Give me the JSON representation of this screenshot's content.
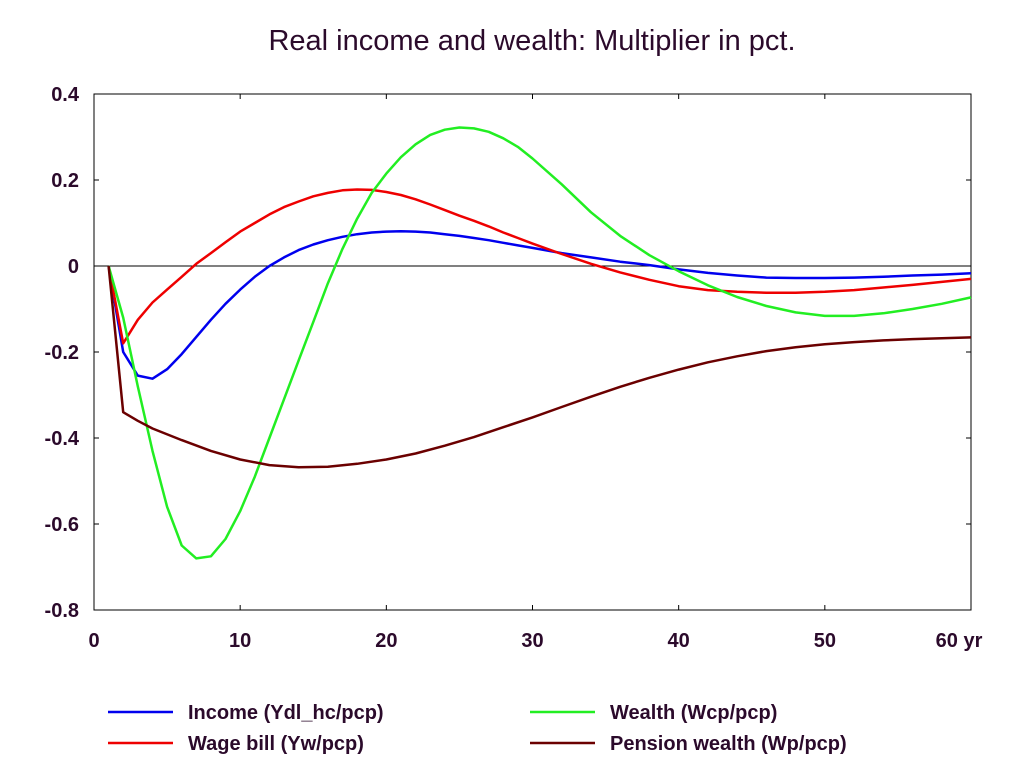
{
  "chart_data": {
    "type": "line",
    "title": "Real income and wealth: Multiplier in pct.",
    "xlabel": "",
    "ylabel": "",
    "x_unit_label": "yr",
    "xlim": [
      0,
      60
    ],
    "ylim": [
      -0.8,
      0.4
    ],
    "x_ticks": [
      0,
      10,
      20,
      30,
      40,
      50,
      60
    ],
    "x_tick_labels": [
      "0",
      "10",
      "20",
      "30",
      "40",
      "50",
      "60"
    ],
    "y_ticks": [
      0.4,
      0.2,
      0,
      -0.2,
      -0.4,
      -0.6,
      -0.8
    ],
    "y_tick_labels": [
      "0.4",
      "0.2",
      "0",
      "-0.2",
      "-0.4",
      "-0.6",
      "-0.8"
    ],
    "grid": false,
    "zero_line": true,
    "legend_position": "bottom",
    "series": [
      {
        "name": "Income (Ydl_hc/pcp)",
        "color": "#0000ee",
        "points": [
          [
            1,
            0
          ],
          [
            2,
            -0.2
          ],
          [
            3,
            -0.255
          ],
          [
            4,
            -0.262
          ],
          [
            5,
            -0.24
          ],
          [
            6,
            -0.205
          ],
          [
            7,
            -0.165
          ],
          [
            8,
            -0.125
          ],
          [
            9,
            -0.088
          ],
          [
            10,
            -0.055
          ],
          [
            11,
            -0.025
          ],
          [
            12,
            0.0
          ],
          [
            13,
            0.02
          ],
          [
            14,
            0.037
          ],
          [
            15,
            0.05
          ],
          [
            16,
            0.06
          ],
          [
            17,
            0.068
          ],
          [
            18,
            0.074
          ],
          [
            19,
            0.078
          ],
          [
            20,
            0.08
          ],
          [
            21,
            0.081
          ],
          [
            22,
            0.08
          ],
          [
            23,
            0.078
          ],
          [
            24,
            0.074
          ],
          [
            25,
            0.07
          ],
          [
            26,
            0.065
          ],
          [
            27,
            0.06
          ],
          [
            28,
            0.054
          ],
          [
            29,
            0.048
          ],
          [
            30,
            0.042
          ],
          [
            32,
            0.03
          ],
          [
            34,
            0.02
          ],
          [
            36,
            0.01
          ],
          [
            38,
            0.002
          ],
          [
            40,
            -0.008
          ],
          [
            42,
            -0.016
          ],
          [
            44,
            -0.022
          ],
          [
            46,
            -0.027
          ],
          [
            48,
            -0.028
          ],
          [
            50,
            -0.028
          ],
          [
            52,
            -0.027
          ],
          [
            54,
            -0.025
          ],
          [
            56,
            -0.022
          ],
          [
            58,
            -0.02
          ],
          [
            60,
            -0.017
          ]
        ]
      },
      {
        "name": "Wage bill (Yw/pcp)",
        "color": "#ee0000",
        "points": [
          [
            1,
            0
          ],
          [
            2,
            -0.18
          ],
          [
            3,
            -0.125
          ],
          [
            4,
            -0.085
          ],
          [
            5,
            -0.055
          ],
          [
            6,
            -0.025
          ],
          [
            7,
            0.005
          ],
          [
            8,
            0.03
          ],
          [
            9,
            0.055
          ],
          [
            10,
            0.08
          ],
          [
            11,
            0.1
          ],
          [
            12,
            0.12
          ],
          [
            13,
            0.137
          ],
          [
            14,
            0.15
          ],
          [
            15,
            0.162
          ],
          [
            16,
            0.17
          ],
          [
            17,
            0.176
          ],
          [
            18,
            0.178
          ],
          [
            19,
            0.177
          ],
          [
            20,
            0.172
          ],
          [
            21,
            0.165
          ],
          [
            22,
            0.155
          ],
          [
            23,
            0.143
          ],
          [
            24,
            0.13
          ],
          [
            25,
            0.117
          ],
          [
            26,
            0.105
          ],
          [
            27,
            0.092
          ],
          [
            28,
            0.078
          ],
          [
            29,
            0.065
          ],
          [
            30,
            0.052
          ],
          [
            32,
            0.028
          ],
          [
            34,
            0.005
          ],
          [
            36,
            -0.015
          ],
          [
            38,
            -0.032
          ],
          [
            40,
            -0.047
          ],
          [
            42,
            -0.056
          ],
          [
            44,
            -0.06
          ],
          [
            46,
            -0.062
          ],
          [
            48,
            -0.062
          ],
          [
            50,
            -0.06
          ],
          [
            52,
            -0.056
          ],
          [
            54,
            -0.05
          ],
          [
            56,
            -0.044
          ],
          [
            58,
            -0.037
          ],
          [
            60,
            -0.03
          ]
        ]
      },
      {
        "name": "Wealth (Wcp/pcp)",
        "color": "#22ee22",
        "points": [
          [
            1,
            0
          ],
          [
            2,
            -0.12
          ],
          [
            3,
            -0.28
          ],
          [
            4,
            -0.43
          ],
          [
            5,
            -0.56
          ],
          [
            6,
            -0.65
          ],
          [
            7,
            -0.68
          ],
          [
            8,
            -0.675
          ],
          [
            9,
            -0.635
          ],
          [
            10,
            -0.57
          ],
          [
            11,
            -0.49
          ],
          [
            12,
            -0.4
          ],
          [
            13,
            -0.31
          ],
          [
            14,
            -0.22
          ],
          [
            15,
            -0.13
          ],
          [
            16,
            -0.04
          ],
          [
            17,
            0.04
          ],
          [
            18,
            0.11
          ],
          [
            19,
            0.17
          ],
          [
            20,
            0.215
          ],
          [
            21,
            0.253
          ],
          [
            22,
            0.283
          ],
          [
            23,
            0.305
          ],
          [
            24,
            0.317
          ],
          [
            25,
            0.322
          ],
          [
            26,
            0.32
          ],
          [
            27,
            0.312
          ],
          [
            28,
            0.297
          ],
          [
            29,
            0.277
          ],
          [
            30,
            0.25
          ],
          [
            32,
            0.19
          ],
          [
            34,
            0.125
          ],
          [
            36,
            0.07
          ],
          [
            38,
            0.025
          ],
          [
            40,
            -0.012
          ],
          [
            42,
            -0.045
          ],
          [
            44,
            -0.072
          ],
          [
            46,
            -0.093
          ],
          [
            48,
            -0.108
          ],
          [
            50,
            -0.116
          ],
          [
            52,
            -0.116
          ],
          [
            54,
            -0.11
          ],
          [
            56,
            -0.1
          ],
          [
            58,
            -0.088
          ],
          [
            60,
            -0.073
          ]
        ]
      },
      {
        "name": "Pension wealth (Wp/pcp)",
        "color": "#6b0000",
        "points": [
          [
            1,
            0
          ],
          [
            2,
            -0.34
          ],
          [
            3,
            -0.36
          ],
          [
            4,
            -0.378
          ],
          [
            6,
            -0.405
          ],
          [
            8,
            -0.43
          ],
          [
            10,
            -0.45
          ],
          [
            12,
            -0.463
          ],
          [
            14,
            -0.468
          ],
          [
            16,
            -0.467
          ],
          [
            18,
            -0.46
          ],
          [
            20,
            -0.45
          ],
          [
            22,
            -0.436
          ],
          [
            24,
            -0.418
          ],
          [
            26,
            -0.398
          ],
          [
            28,
            -0.375
          ],
          [
            30,
            -0.352
          ],
          [
            32,
            -0.328
          ],
          [
            34,
            -0.304
          ],
          [
            36,
            -0.281
          ],
          [
            38,
            -0.26
          ],
          [
            40,
            -0.241
          ],
          [
            42,
            -0.224
          ],
          [
            44,
            -0.21
          ],
          [
            46,
            -0.198
          ],
          [
            48,
            -0.189
          ],
          [
            50,
            -0.182
          ],
          [
            52,
            -0.177
          ],
          [
            54,
            -0.173
          ],
          [
            56,
            -0.17
          ],
          [
            58,
            -0.168
          ],
          [
            60,
            -0.166
          ]
        ]
      }
    ]
  }
}
